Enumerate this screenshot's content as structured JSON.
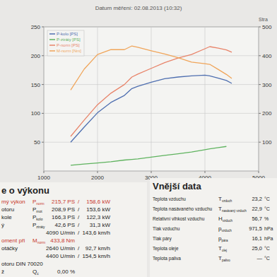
{
  "chart_data": {
    "type": "line",
    "header": "Datum měření: 02.08.2013 (10:32)",
    "page_label": "Stra",
    "x": [
      1500,
      1750,
      2000,
      2250,
      2500,
      2640,
      2750,
      3000,
      3250,
      3500,
      3750,
      4000,
      4090,
      4250,
      4400,
      4500
    ],
    "xlim": [
      1000,
      5000
    ],
    "xticks": [
      1000,
      2000,
      3000,
      4000,
      5000
    ],
    "ylim": [
      0,
      250
    ],
    "yticks": [
      50,
      100,
      150,
      200,
      250
    ],
    "y2lim": [
      0,
      500
    ],
    "y2ticks": [
      100,
      200,
      300,
      400,
      500
    ],
    "grid": true,
    "legend": "upper left",
    "series": [
      {
        "name": "P-kolo [PS]",
        "color": "#4f6fb0",
        "values": [
          50,
          76,
          101,
          119,
          131,
          143,
          147,
          154,
          160,
          163,
          165,
          166.3,
          165,
          161,
          157,
          152
        ]
      },
      {
        "name": "P-ztráty [PS]",
        "color": "#5fb35f",
        "values": [
          10,
          12,
          14,
          16,
          19,
          20,
          21,
          24,
          27,
          30,
          33,
          37,
          38.5,
          40.5,
          42.6,
          null
        ]
      },
      {
        "name": "P-norm [PS]",
        "color": "#e8846a",
        "values": [
          60,
          88,
          115,
          135,
          150,
          163,
          168,
          178,
          188,
          196,
          202,
          212,
          215.7,
          213,
          210,
          206
        ]
      },
      {
        "name": "M-norm [Nm]",
        "color": "#f0a55a",
        "axis": "y2",
        "values": [
          281,
          353,
          404,
          421,
          421,
          433.8,
          429,
          417,
          406,
          393,
          378,
          372,
          370,
          352,
          335,
          321
        ]
      }
    ]
  },
  "performance": {
    "title": "e o výkonu",
    "rows": [
      {
        "label": "mý výkon",
        "symbol": "P",
        "sub": "norm",
        "value": "215,7 PS",
        "value2": "158,6 kW",
        "color": "#c8372d"
      },
      {
        "label": "otoru",
        "symbol": "P",
        "sub": "mot",
        "value": "208,9 PS",
        "value2": "153,6 kW"
      },
      {
        "label": "kole",
        "symbol": "P",
        "sub": "kolo",
        "value": "166,3 PS",
        "value2": "122,3 kW"
      },
      {
        "label": "ý",
        "symbol": "P",
        "sub": "ztráty",
        "value": "42,6 PS",
        "value2": "31,3 kW"
      },
      {
        "value": "4090 U/min",
        "value2": "143,6 km/h"
      },
      {
        "label": "oment při",
        "symbol": "M",
        "sub": "norm",
        "value": "433,8 Nm",
        "color": "#c8372d"
      },
      {
        "label": "otáčky",
        "value": "2640 U/min",
        "value2": "92,7 km/h"
      },
      {
        "value": "4400 U/min",
        "value2": "154,5 km/h"
      },
      {
        "label": "otoru DIN 70020"
      },
      {
        "label": "ž",
        "symbol": "Q",
        "sub": "c",
        "value": "0,00 %"
      }
    ]
  },
  "external": {
    "title": "Vnější data",
    "rows": [
      {
        "label": "Teplota vzduchu",
        "symbol": "T",
        "sub": "vzduch",
        "value": "23,2",
        "unit": "°C"
      },
      {
        "label": "Teplota nasávaného vzduchu",
        "symbol": "T",
        "sub": "nasávaný vzduch",
        "value": "22,9",
        "unit": "°C"
      },
      {
        "label": "Relativní vlhkost vzduchu",
        "symbol": "H",
        "sub": "vzduch",
        "value": "56,7",
        "unit": "%"
      },
      {
        "label": "Tlak vzduchu",
        "symbol": "p",
        "sub": "vzduch",
        "value": "971,5",
        "unit": "hPa"
      },
      {
        "label": "Tlak páry",
        "symbol": "p",
        "sub": "pára",
        "value": "16,1",
        "unit": "hPa"
      },
      {
        "label": "Teplota oleje",
        "symbol": "T",
        "sub": "olej",
        "value": "25,0",
        "unit": "°C"
      },
      {
        "label": "Teplota paliva",
        "symbol": "T",
        "sub": "palivo",
        "value": "—",
        "unit": "°C"
      }
    ]
  }
}
